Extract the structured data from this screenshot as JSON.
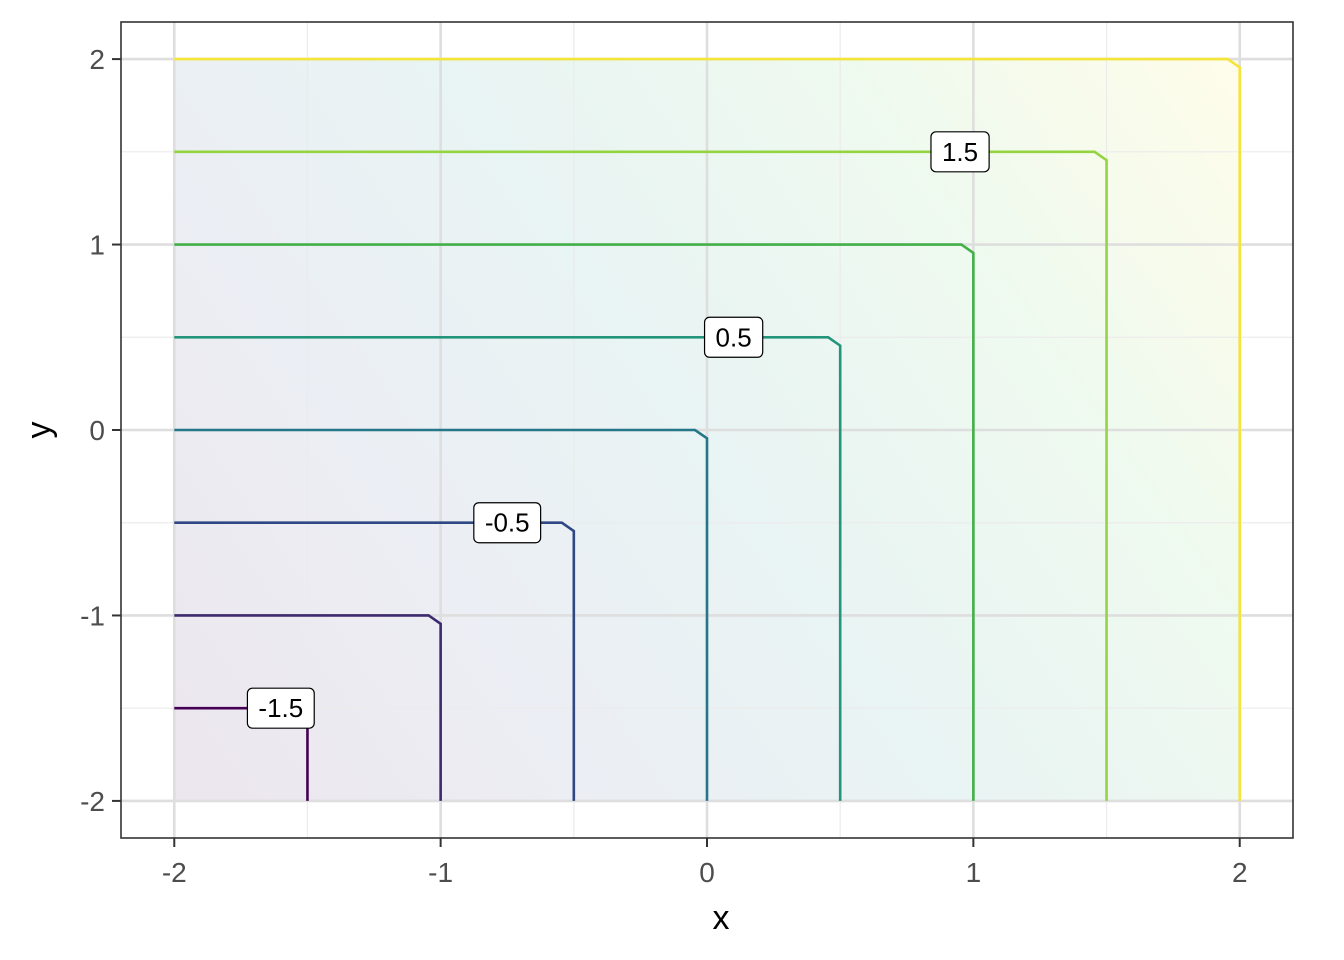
{
  "chart_data": {
    "type": "contour",
    "xlabel": "x",
    "ylabel": "y",
    "xlim": [
      -2.2,
      2.2
    ],
    "ylim": [
      -2.2,
      2.2
    ],
    "x_ticks": [
      -2,
      -1,
      0,
      1,
      2
    ],
    "y_ticks": [
      -2,
      -1,
      0,
      1,
      2
    ],
    "x_tick_labels": [
      "-2",
      "-1",
      "0",
      "1",
      "2"
    ],
    "y_tick_labels": [
      "-2",
      "-1",
      "0",
      "1",
      "2"
    ],
    "grid": true,
    "legend": "none",
    "domain": {
      "x": [
        -2,
        2
      ],
      "y": [
        -2,
        2
      ]
    },
    "field": "z = max(x, y)",
    "levels": [
      {
        "value": -1.5,
        "color": "#440154",
        "label": "-1.5",
        "label_at": [
          -1.6,
          -1.5
        ]
      },
      {
        "value": -1.0,
        "color": "#472D7B",
        "label": ""
      },
      {
        "value": -0.5,
        "color": "#3B528B",
        "label": "-0.5",
        "label_at": [
          -0.75,
          -0.5
        ]
      },
      {
        "value": 0.0,
        "color": "#2C728E",
        "label": ""
      },
      {
        "value": 0.5,
        "color": "#21908C",
        "label": "0.5",
        "label_at": [
          0.1,
          0.5
        ]
      },
      {
        "value": 1.0,
        "color": "#27AD81",
        "label": ""
      },
      {
        "value": 1.5,
        "color": "#5DC863",
        "label": "1.5",
        "label_at": [
          0.95,
          1.5
        ]
      },
      {
        "value": 2.0,
        "color": "#FDE725",
        "label": ""
      }
    ],
    "level_colors_display": {
      "-1.5": "#440154",
      "-1": "#3E2A6F",
      "-0.5": "#2F4883",
      "0": "#26768A",
      "0.5": "#23957A",
      "1": "#43B049",
      "1.5": "#94D440",
      "2": "#F3E53A"
    },
    "fill_gradient": [
      "#440154",
      "#3B528B",
      "#21908C",
      "#5DC863",
      "#FDE725"
    ],
    "fill_opacity": 0.1
  }
}
